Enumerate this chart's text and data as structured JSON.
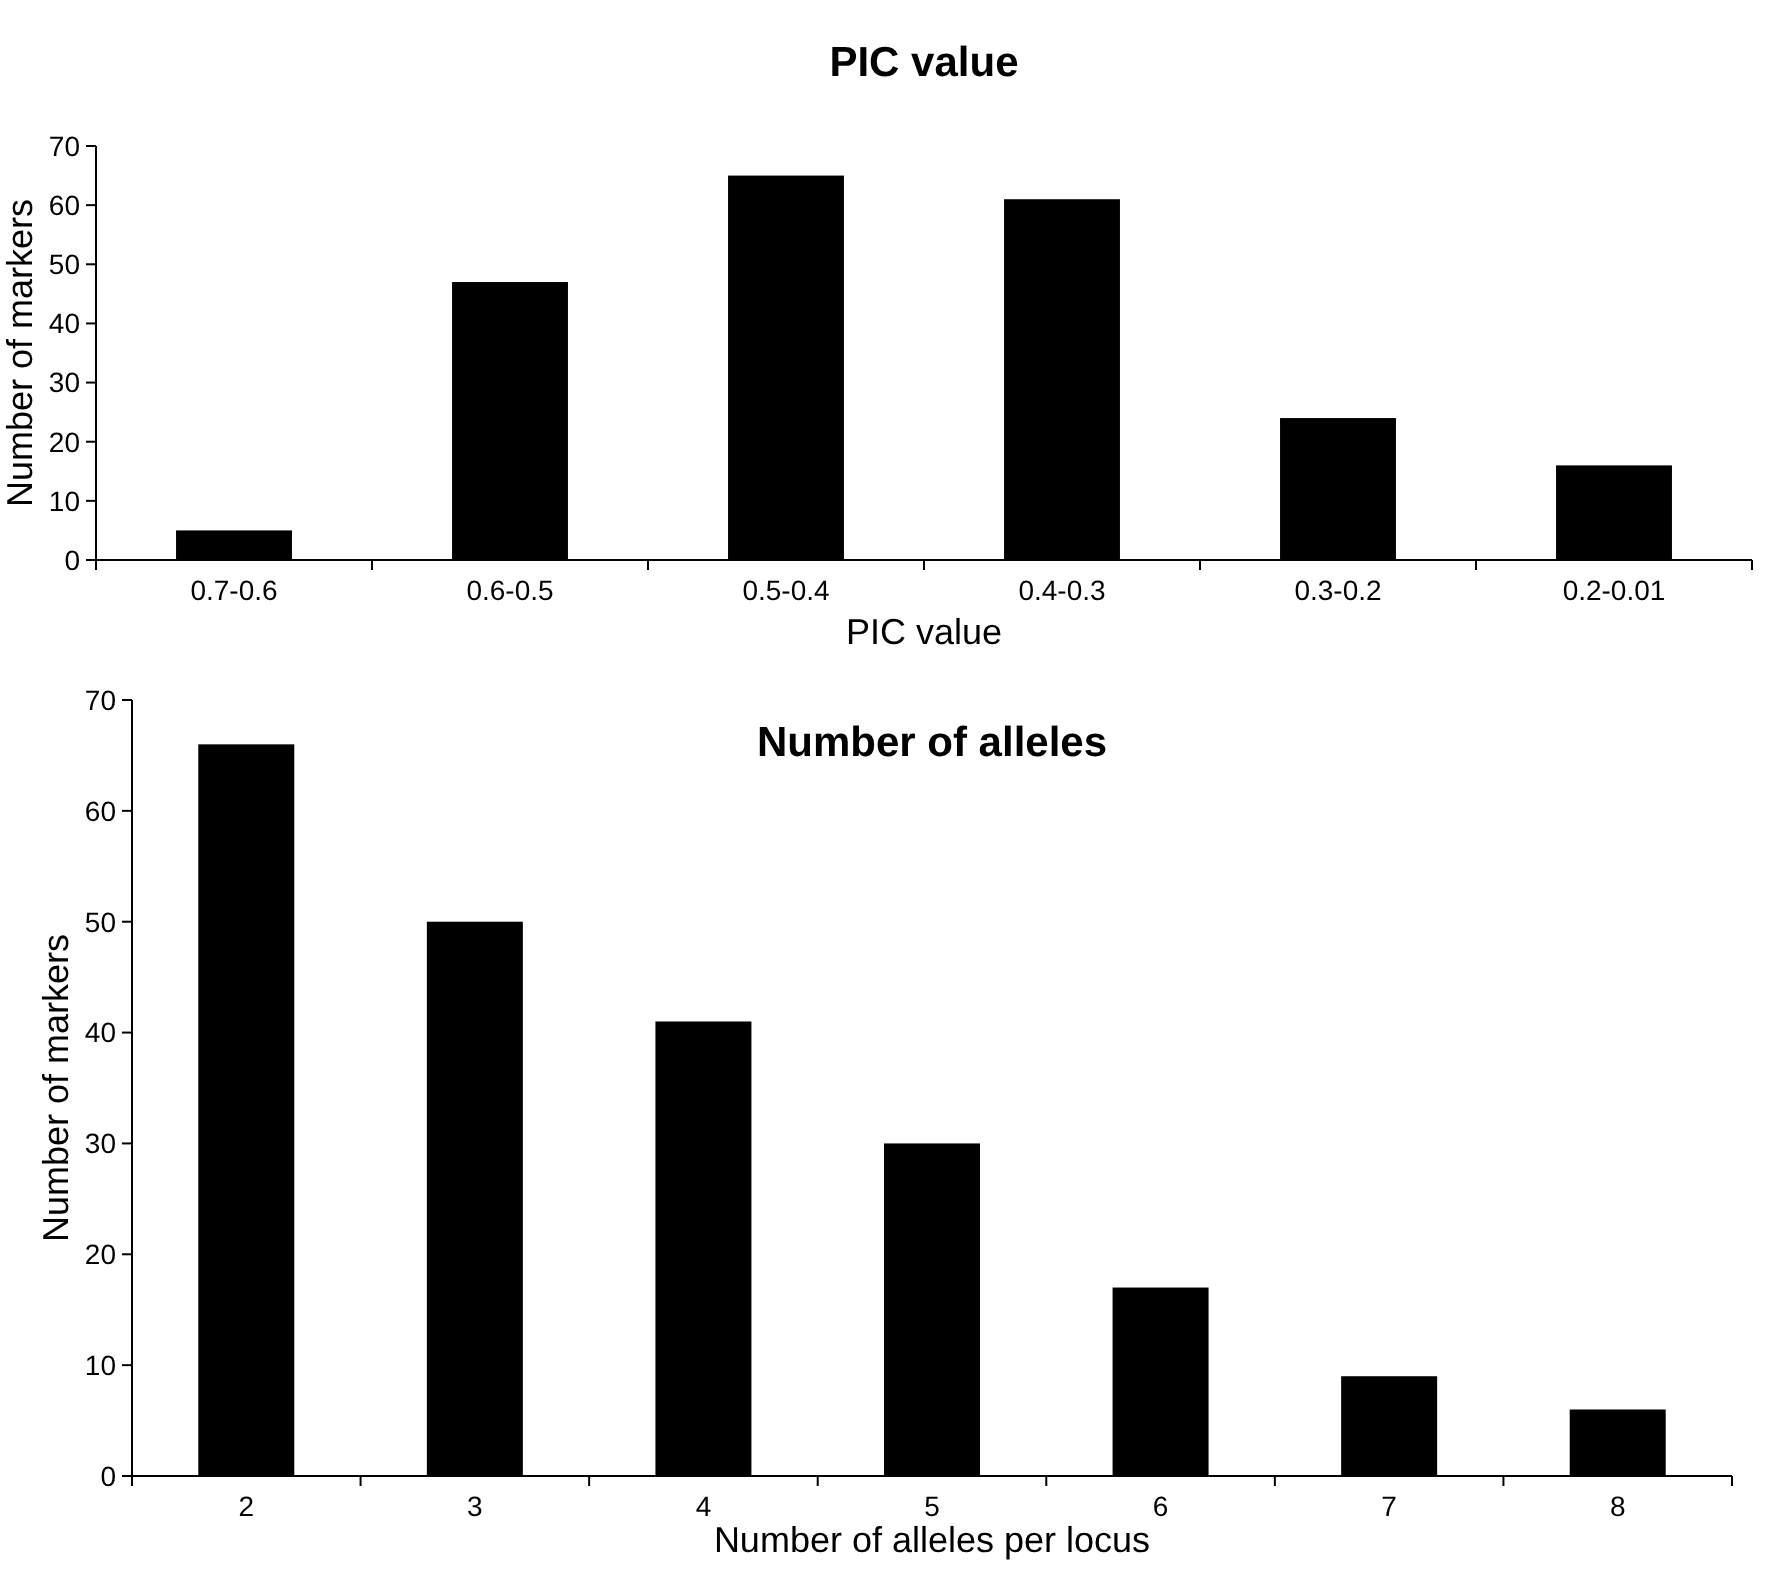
{
  "chart_data": [
    {
      "type": "bar",
      "title": "PIC value",
      "xlabel": "PIC value",
      "ylabel": "Number of markers",
      "categories": [
        "0.7-0.6",
        "0.6-0.5",
        "0.5-0.4",
        "0.4-0.3",
        "0.3-0.2",
        "0.2-0.01"
      ],
      "values": [
        5,
        47,
        65,
        61,
        24,
        16
      ],
      "color": "#000000",
      "ylim": [
        0,
        70
      ],
      "yticks": [
        0,
        10,
        20,
        30,
        40,
        50,
        60,
        70
      ]
    },
    {
      "type": "bar",
      "title": "Number of alleles",
      "xlabel": "Number of alleles per locus",
      "ylabel": "Number of markers",
      "categories": [
        "2",
        "3",
        "4",
        "5",
        "6",
        "7",
        "8"
      ],
      "values": [
        66,
        50,
        41,
        30,
        17,
        9,
        6
      ],
      "color": "#000000",
      "ylim": [
        0,
        70
      ],
      "yticks": [
        0,
        10,
        20,
        30,
        40,
        50,
        60,
        70
      ]
    }
  ]
}
